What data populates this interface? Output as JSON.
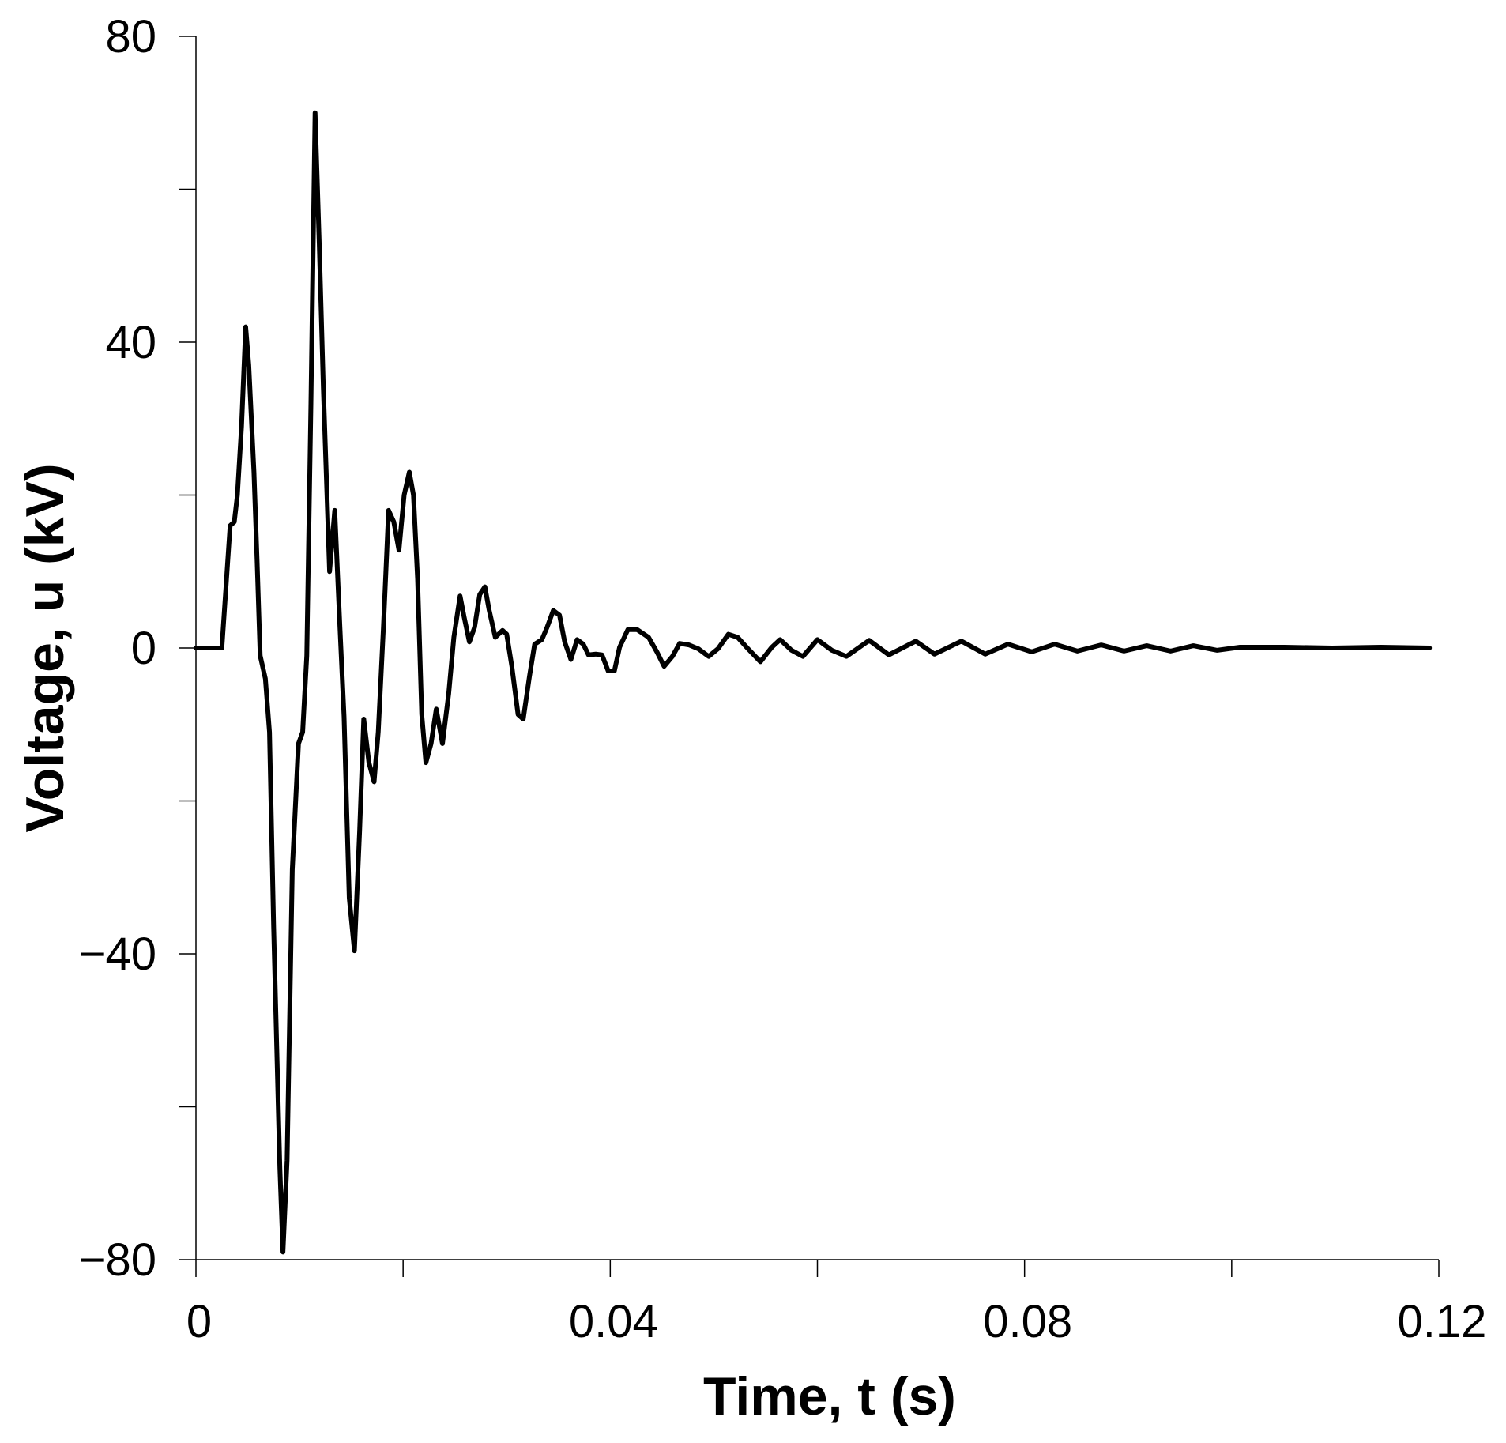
{
  "chart_data": {
    "type": "line",
    "xlabel": "Time, t (s)",
    "ylabel": "Voltage, u (kV)",
    "xlim": [
      0,
      0.12
    ],
    "ylim": [
      -80,
      80
    ],
    "xticks": [
      0,
      0.04,
      0.08,
      0.12
    ],
    "xticks_minor": [
      0.02,
      0.06,
      0.1
    ],
    "yticks": [
      {
        "value": -80,
        "label": "−80"
      },
      {
        "value": -40,
        "label": "−40"
      },
      0,
      40,
      80
    ],
    "yticks_minor": [
      -60,
      -20,
      20,
      60
    ],
    "grid": false,
    "x": [
      0,
      0.0025,
      0.003,
      0.0033,
      0.0037,
      0.004,
      0.0044,
      0.0048,
      0.0051,
      0.0056,
      0.0059,
      0.0062,
      0.0067,
      0.0071,
      0.0075,
      0.0081,
      0.0084,
      0.0088,
      0.0093,
      0.0099,
      0.0103,
      0.0107,
      0.0111,
      0.0115,
      0.0119,
      0.0123,
      0.0129,
      0.0134,
      0.0139,
      0.0143,
      0.0148,
      0.0153,
      0.0158,
      0.0162,
      0.0167,
      0.0172,
      0.0176,
      0.0181,
      0.0186,
      0.0191,
      0.0196,
      0.0201,
      0.0206,
      0.021,
      0.0214,
      0.0218,
      0.0222,
      0.0227,
      0.0232,
      0.0238,
      0.0244,
      0.0249,
      0.0255,
      0.0259,
      0.0264,
      0.0269,
      0.0274,
      0.0279,
      0.0283,
      0.0289,
      0.0296,
      0.03,
      0.0305,
      0.0311,
      0.0316,
      0.0322,
      0.0327,
      0.0334,
      0.0339,
      0.0345,
      0.0351,
      0.0356,
      0.0362,
      0.0368,
      0.0374,
      0.0379,
      0.0386,
      0.0392,
      0.0398,
      0.0404,
      0.0409,
      0.0417,
      0.0426,
      0.0437,
      0.0445,
      0.0452,
      0.046,
      0.0467,
      0.0476,
      0.0485,
      0.0495,
      0.0504,
      0.0514,
      0.0523,
      0.0533,
      0.0545,
      0.0556,
      0.0564,
      0.0575,
      0.0586,
      0.06,
      0.0614,
      0.0628,
      0.065,
      0.0669,
      0.0695,
      0.0713,
      0.0739,
      0.0762,
      0.0784,
      0.0807,
      0.0829,
      0.0851,
      0.0874,
      0.0896,
      0.0918,
      0.0941,
      0.0963,
      0.0986,
      0.1008,
      0.1051,
      0.1097,
      0.1144,
      0.1191
    ],
    "series": [
      {
        "color": "#000000",
        "values": [
          0,
          0,
          10,
          16,
          16.5,
          20,
          29,
          42,
          37,
          23,
          11.5,
          -1,
          -4,
          -11,
          -36.5,
          -68,
          -79,
          -67,
          -29,
          -12.5,
          -11,
          -1,
          32,
          70,
          53,
          34,
          10,
          18,
          2.7,
          -9,
          -32.7,
          -39.6,
          -24,
          -9.3,
          -15,
          -17.5,
          -11,
          2.7,
          18,
          16.5,
          12.8,
          20,
          23,
          20,
          9,
          -8.7,
          -15,
          -12.5,
          -8,
          -12.5,
          -6,
          1.4,
          6.8,
          4,
          0.8,
          2.7,
          7,
          8,
          5,
          1.4,
          2.3,
          1.8,
          -2.4,
          -8.7,
          -9.3,
          -3.7,
          0.5,
          1.1,
          2.7,
          4.9,
          4.3,
          0.8,
          -1.5,
          1.1,
          0.5,
          -0.9,
          -0.8,
          -0.9,
          -3,
          -3,
          0.1,
          2.4,
          2.4,
          1.4,
          -0.5,
          -2.4,
          -1.1,
          0.6,
          0.4,
          -0.1,
          -1.1,
          -0.1,
          1.8,
          1.4,
          -0.1,
          -1.8,
          0.1,
          1.1,
          -0.3,
          -1.1,
          1.1,
          -0.3,
          -1.1,
          1,
          -0.9,
          0.9,
          -0.8,
          0.9,
          -0.8,
          0.5,
          -0.5,
          0.5,
          -0.4,
          0.4,
          -0.4,
          0.3,
          -0.4,
          0.3,
          -0.3,
          0.1,
          0.1,
          0,
          0.1,
          0
        ]
      }
    ]
  }
}
